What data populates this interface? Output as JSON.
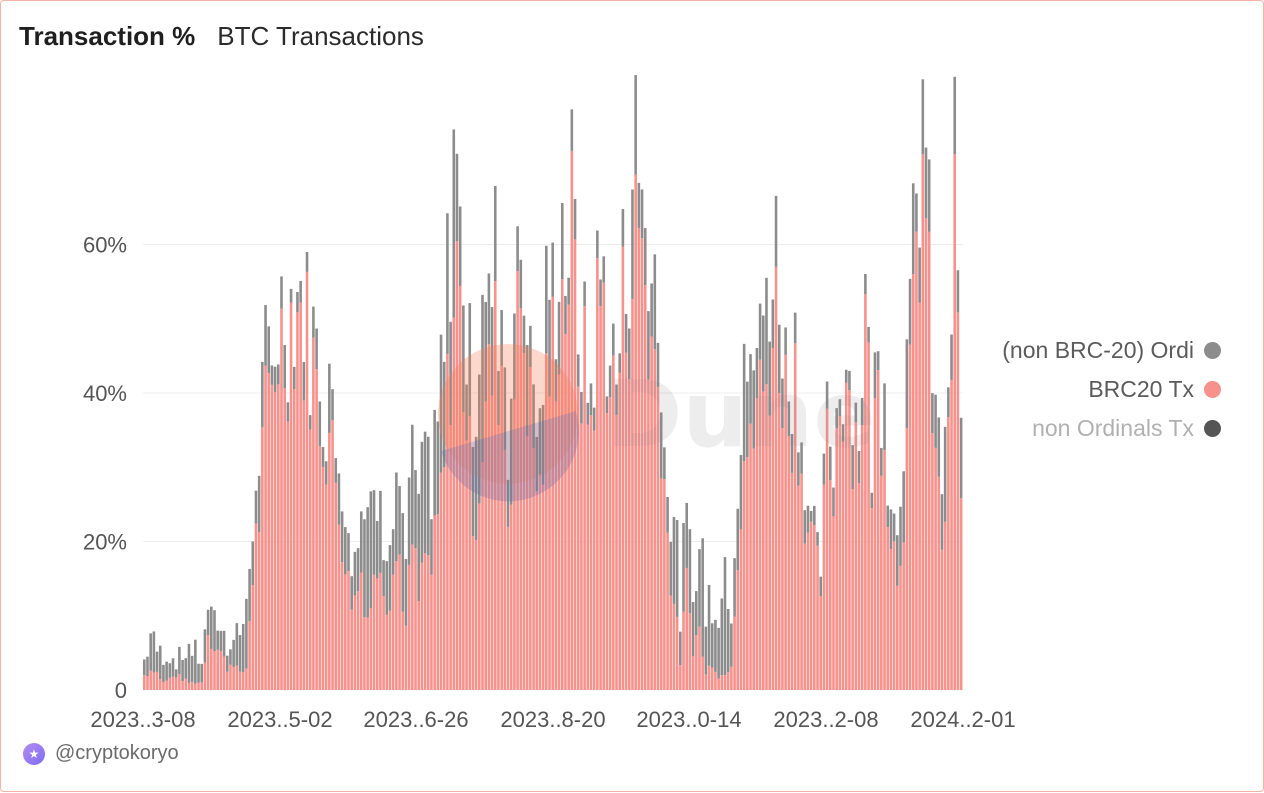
{
  "header": {
    "title": "Transaction %",
    "subtitle": "BTC Transactions"
  },
  "footer": {
    "handle": "@cryptokoryo",
    "avatar_icon": "dune-user-avatar-icon"
  },
  "watermark": {
    "text": "Dune"
  },
  "colors": {
    "ordi": "#8c8c8c",
    "brc20": "#f7918c",
    "non_ordinals": "#555555",
    "grid": "#ececec",
    "border": "#f3b3a8"
  },
  "chart_data": {
    "type": "bar",
    "stacked": true,
    "title": "Transaction %",
    "subtitle": "BTC Transactions",
    "x_tick_labels": [
      "2023..3-08",
      "2023..5-02",
      "2023..6-26",
      "2023..8-20",
      "2023..0-14",
      "2023..2-08",
      "2024..2-01"
    ],
    "y_tick_labels": [
      "0",
      "20%",
      "40%",
      "60%"
    ],
    "ylim": [
      0,
      80
    ],
    "grid": true,
    "legend_position": "right",
    "series": [
      {
        "name": "(non BRC-20) Ordi",
        "color": "#8c8c8c",
        "anchors": [
          [
            0,
            2
          ],
          [
            2,
            5
          ],
          [
            4,
            3
          ],
          [
            6,
            4
          ],
          [
            8,
            3
          ],
          [
            10,
            2
          ],
          [
            12,
            3
          ],
          [
            14,
            5
          ],
          [
            16,
            4
          ],
          [
            18,
            3
          ],
          [
            20,
            4
          ],
          [
            22,
            4
          ],
          [
            24,
            3
          ],
          [
            26,
            3
          ],
          [
            28,
            4
          ],
          [
            30,
            6
          ],
          [
            32,
            7
          ],
          [
            34,
            8
          ],
          [
            36,
            6
          ],
          [
            38,
            6
          ],
          [
            40,
            5
          ],
          [
            42,
            3
          ],
          [
            44,
            4
          ],
          [
            46,
            2
          ],
          [
            48,
            2
          ],
          [
            50,
            4
          ],
          [
            52,
            3
          ],
          [
            54,
            4
          ],
          [
            56,
            5
          ],
          [
            58,
            7
          ],
          [
            60,
            6
          ],
          [
            62,
            8
          ],
          [
            64,
            8
          ],
          [
            66,
            10
          ],
          [
            68,
            9
          ],
          [
            70,
            12
          ],
          [
            72,
            10
          ],
          [
            74,
            8
          ],
          [
            76,
            9
          ],
          [
            78,
            7
          ],
          [
            80,
            10
          ],
          [
            82,
            9
          ],
          [
            84,
            11
          ],
          [
            86,
            12
          ],
          [
            88,
            11
          ],
          [
            90,
            13
          ],
          [
            92,
            14
          ],
          [
            94,
            15
          ],
          [
            96,
            16
          ],
          [
            98,
            18
          ],
          [
            100,
            14
          ],
          [
            102,
            15
          ],
          [
            104,
            12
          ],
          [
            106,
            16
          ],
          [
            108,
            14
          ],
          [
            110,
            12
          ],
          [
            112,
            10
          ],
          [
            114,
            12
          ],
          [
            116,
            11
          ],
          [
            118,
            9
          ],
          [
            120,
            10
          ],
          [
            122,
            11
          ],
          [
            124,
            9
          ],
          [
            126,
            10
          ],
          [
            128,
            8
          ],
          [
            130,
            8
          ],
          [
            132,
            6
          ],
          [
            134,
            5
          ],
          [
            136,
            4
          ],
          [
            138,
            3
          ],
          [
            140,
            4
          ],
          [
            142,
            3
          ],
          [
            144,
            4
          ],
          [
            146,
            3
          ],
          [
            148,
            3
          ],
          [
            150,
            6
          ],
          [
            152,
            8
          ],
          [
            154,
            12
          ],
          [
            156,
            10
          ],
          [
            158,
            9
          ],
          [
            160,
            11
          ],
          [
            162,
            9
          ],
          [
            164,
            8
          ],
          [
            166,
            10
          ],
          [
            168,
            9
          ],
          [
            170,
            7
          ],
          [
            172,
            9
          ],
          [
            174,
            12
          ],
          [
            176,
            10
          ],
          [
            178,
            8
          ],
          [
            180,
            9
          ],
          [
            182,
            11
          ],
          [
            184,
            9
          ],
          [
            186,
            10
          ],
          [
            188,
            12
          ],
          [
            190,
            8
          ],
          [
            192,
            9
          ],
          [
            194,
            11
          ],
          [
            196,
            10
          ],
          [
            198,
            8
          ],
          [
            200,
            7
          ],
          [
            202,
            6
          ],
          [
            204,
            5
          ],
          [
            206,
            4
          ],
          [
            208,
            3
          ],
          [
            210,
            2
          ],
          [
            212,
            3
          ],
          [
            214,
            4
          ],
          [
            216,
            3
          ],
          [
            218,
            2
          ],
          [
            220,
            3
          ],
          [
            222,
            4
          ],
          [
            224,
            3
          ],
          [
            226,
            3
          ],
          [
            228,
            4
          ],
          [
            230,
            5
          ],
          [
            232,
            6
          ],
          [
            234,
            5
          ],
          [
            236,
            7
          ],
          [
            238,
            9
          ],
          [
            240,
            11
          ],
          [
            242,
            10
          ],
          [
            244,
            8
          ],
          [
            246,
            7
          ],
          [
            248,
            9
          ],
          [
            250,
            10
          ],
          [
            252,
            8
          ],
          [
            254,
            7
          ],
          [
            256,
            9
          ]
        ],
        "sampled_every_n_days": 1
      },
      {
        "name": "BRC20 Tx",
        "color": "#f7918c",
        "anchors": [
          [
            0,
            2
          ],
          [
            3,
            3
          ],
          [
            6,
            1
          ],
          [
            10,
            2
          ],
          [
            14,
            1
          ],
          [
            18,
            1
          ],
          [
            20,
            8
          ],
          [
            22,
            6
          ],
          [
            24,
            5
          ],
          [
            26,
            3
          ],
          [
            28,
            4
          ],
          [
            30,
            2
          ],
          [
            32,
            3
          ],
          [
            34,
            16
          ],
          [
            36,
            24
          ],
          [
            38,
            36
          ],
          [
            40,
            40
          ],
          [
            42,
            48
          ],
          [
            44,
            46
          ],
          [
            46,
            50
          ],
          [
            48,
            52
          ],
          [
            50,
            48
          ],
          [
            52,
            46
          ],
          [
            54,
            40
          ],
          [
            56,
            36
          ],
          [
            58,
            34
          ],
          [
            60,
            28
          ],
          [
            62,
            22
          ],
          [
            64,
            14
          ],
          [
            66,
            12
          ],
          [
            68,
            16
          ],
          [
            70,
            10
          ],
          [
            72,
            14
          ],
          [
            74,
            20
          ],
          [
            76,
            12
          ],
          [
            78,
            16
          ],
          [
            80,
            18
          ],
          [
            82,
            8
          ],
          [
            84,
            20
          ],
          [
            86,
            12
          ],
          [
            88,
            18
          ],
          [
            90,
            16
          ],
          [
            92,
            22
          ],
          [
            94,
            30
          ],
          [
            96,
            46
          ],
          [
            98,
            56
          ],
          [
            100,
            44
          ],
          [
            102,
            30
          ],
          [
            104,
            24
          ],
          [
            106,
            34
          ],
          [
            108,
            40
          ],
          [
            110,
            46
          ],
          [
            112,
            44
          ],
          [
            114,
            24
          ],
          [
            116,
            40
          ],
          [
            118,
            54
          ],
          [
            120,
            42
          ],
          [
            122,
            32
          ],
          [
            124,
            26
          ],
          [
            126,
            38
          ],
          [
            128,
            46
          ],
          [
            130,
            52
          ],
          [
            132,
            54
          ],
          [
            134,
            60
          ],
          [
            136,
            46
          ],
          [
            138,
            42
          ],
          [
            140,
            36
          ],
          [
            142,
            50
          ],
          [
            144,
            52
          ],
          [
            146,
            42
          ],
          [
            148,
            38
          ],
          [
            150,
            50
          ],
          [
            152,
            54
          ],
          [
            154,
            60
          ],
          [
            156,
            62
          ],
          [
            158,
            48
          ],
          [
            160,
            44
          ],
          [
            162,
            38
          ],
          [
            164,
            20
          ],
          [
            166,
            12
          ],
          [
            168,
            4
          ],
          [
            170,
            14
          ],
          [
            172,
            6
          ],
          [
            174,
            8
          ],
          [
            176,
            2
          ],
          [
            178,
            4
          ],
          [
            180,
            2
          ],
          [
            182,
            2
          ],
          [
            184,
            4
          ],
          [
            186,
            20
          ],
          [
            188,
            34
          ],
          [
            190,
            30
          ],
          [
            192,
            40
          ],
          [
            194,
            38
          ],
          [
            196,
            46
          ],
          [
            198,
            50
          ],
          [
            200,
            44
          ],
          [
            202,
            36
          ],
          [
            204,
            42
          ],
          [
            206,
            30
          ],
          [
            208,
            22
          ],
          [
            210,
            18
          ],
          [
            212,
            14
          ],
          [
            214,
            32
          ],
          [
            216,
            28
          ],
          [
            218,
            40
          ],
          [
            220,
            44
          ],
          [
            222,
            36
          ],
          [
            224,
            32
          ],
          [
            226,
            50
          ],
          [
            228,
            30
          ],
          [
            230,
            40
          ],
          [
            232,
            36
          ],
          [
            234,
            22
          ],
          [
            236,
            16
          ],
          [
            238,
            26
          ],
          [
            240,
            38
          ],
          [
            242,
            56
          ],
          [
            244,
            72
          ],
          [
            246,
            50
          ],
          [
            248,
            30
          ],
          [
            250,
            20
          ],
          [
            252,
            30
          ],
          [
            254,
            62
          ],
          [
            256,
            28
          ]
        ],
        "sampled_every_n_days": 1
      },
      {
        "name": "non Ordinals Tx",
        "color": "#555555",
        "values_note": ""
      }
    ]
  },
  "legend": [
    {
      "label": "(non BRC-20) Ordi",
      "color": "#8c8c8c",
      "style": "normal"
    },
    {
      "label": "BRC20 Tx",
      "color": "#f7918c",
      "style": "normal"
    },
    {
      "label": "non Ordinals Tx",
      "color": "#555555",
      "style": "muted"
    }
  ]
}
